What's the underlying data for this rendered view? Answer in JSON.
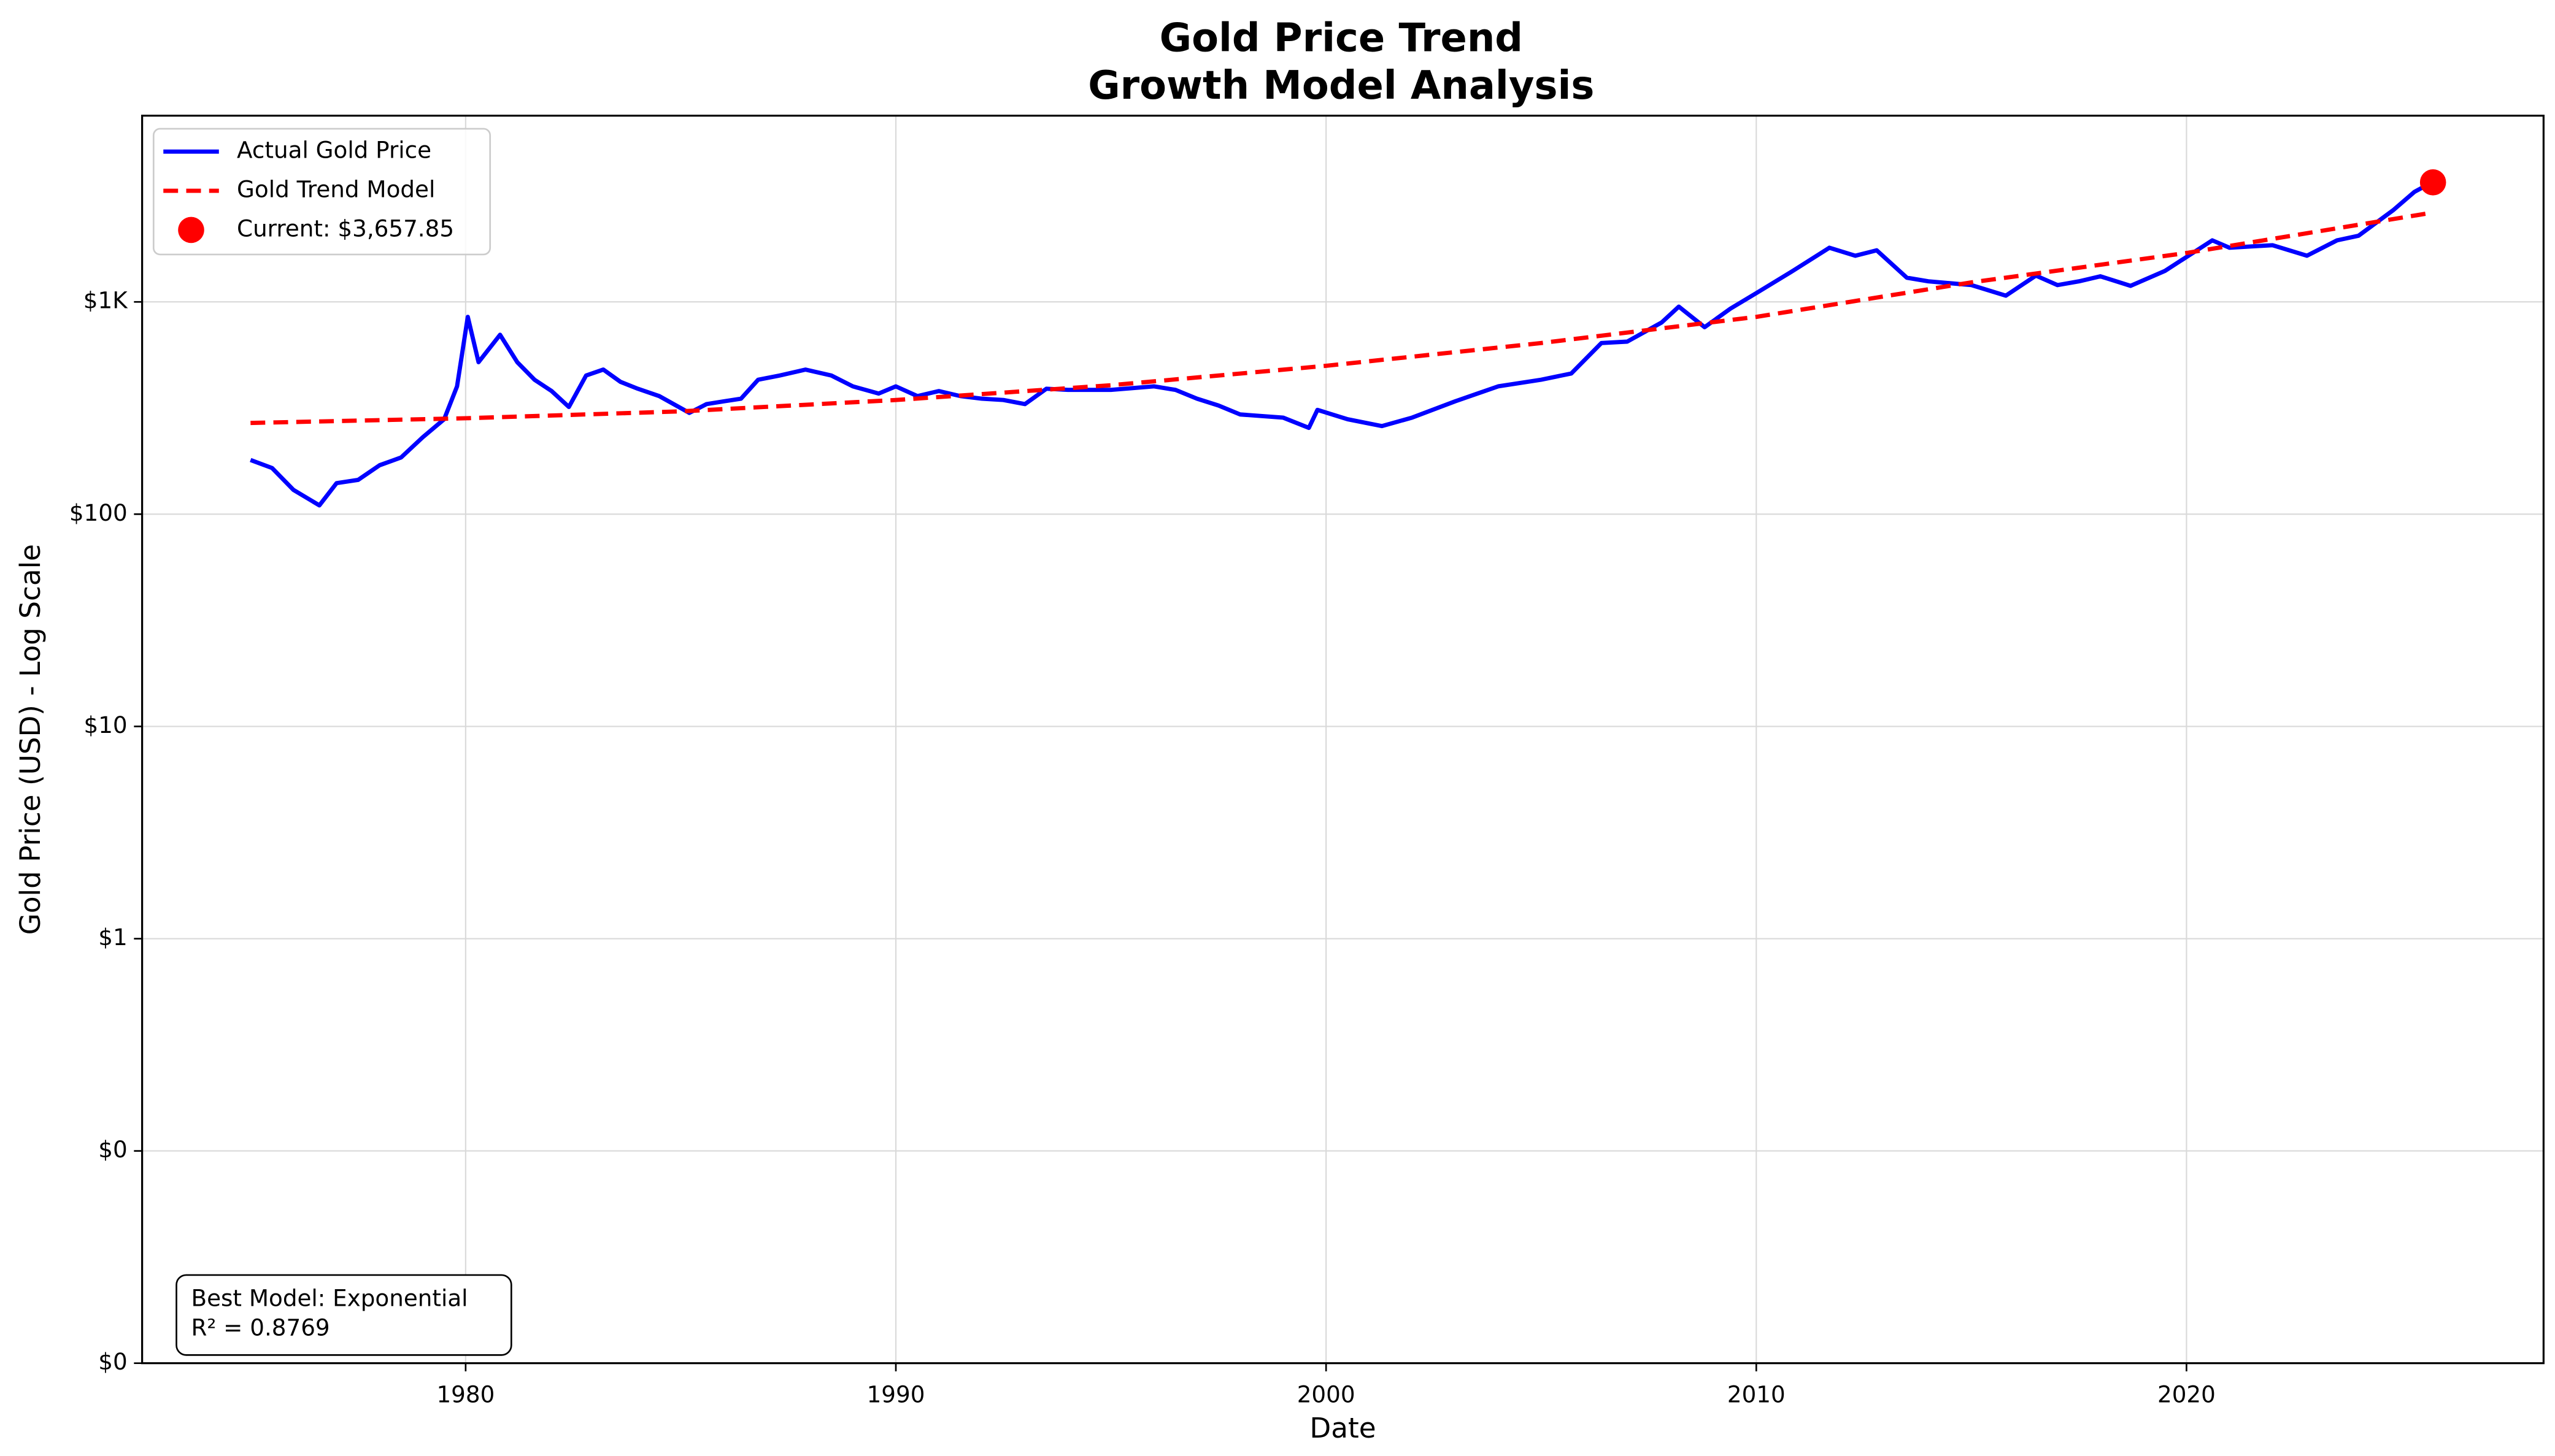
{
  "chart_data": {
    "type": "line",
    "title": "Gold Price Trend",
    "subtitle": "Growth Model Analysis",
    "x_label": "Date",
    "y_label": "Gold Price (USD) - Log Scale",
    "log_y": true,
    "grid": true,
    "legend": "upper left",
    "xlim": [
      1972.48,
      2028.3
    ],
    "xticks": [
      1980,
      1990,
      2000,
      2010,
      2020
    ],
    "ylim": [
      0.01,
      7540
    ],
    "yticks": [
      {
        "value": 0.01,
        "label": "$0"
      },
      {
        "value": 0.1,
        "label": "$0"
      },
      {
        "value": 1,
        "label": "$1"
      },
      {
        "value": 10,
        "label": "$10"
      },
      {
        "value": 100,
        "label": "$100"
      },
      {
        "value": 1000,
        "label": "$1K"
      }
    ],
    "series": [
      {
        "name": "Actual Gold Price",
        "color": "#0000ff",
        "style": "solid",
        "x": [
          1975.0,
          1975.5,
          1976.0,
          1976.6,
          1977.0,
          1977.5,
          1978.0,
          1978.5,
          1979.0,
          1979.5,
          1979.8,
          1980.05,
          1980.3,
          1980.8,
          1981.2,
          1981.6,
          1982.0,
          1982.4,
          1982.8,
          1983.2,
          1983.6,
          1984.0,
          1984.5,
          1985.2,
          1985.6,
          1986.0,
          1986.4,
          1986.8,
          1987.3,
          1987.9,
          1988.5,
          1989.0,
          1989.6,
          1990.0,
          1990.5,
          1991.0,
          1991.5,
          1992.0,
          1992.5,
          1993.0,
          1993.5,
          1994.0,
          1995.0,
          1996.0,
          1996.5,
          1997.0,
          1997.5,
          1998.0,
          1999.0,
          1999.6,
          1999.8,
          2000.5,
          2001.3,
          2002.0,
          2003.0,
          2004.0,
          2005.0,
          2005.7,
          2006.4,
          2007.0,
          2007.8,
          2008.2,
          2008.8,
          2009.4,
          2010.0,
          2010.8,
          2011.7,
          2012.3,
          2012.8,
          2013.5,
          2014.0,
          2015.0,
          2015.8,
          2016.5,
          2017.0,
          2017.5,
          2018.0,
          2018.7,
          2019.5,
          2020.6,
          2021.0,
          2022.0,
          2022.8,
          2023.5,
          2024.0,
          2024.8,
          2025.3,
          2025.7
        ],
        "values": [
          180,
          165,
          130,
          110,
          140,
          145,
          170,
          185,
          230,
          280,
          400,
          850,
          520,
          700,
          520,
          430,
          380,
          320,
          450,
          480,
          420,
          390,
          360,
          300,
          330,
          340,
          350,
          430,
          450,
          480,
          450,
          400,
          370,
          400,
          360,
          380,
          360,
          350,
          345,
          330,
          390,
          385,
          385,
          400,
          385,
          350,
          325,
          295,
          285,
          255,
          310,
          280,
          260,
          285,
          340,
          400,
          430,
          460,
          640,
          650,
          800,
          950,
          760,
          930,
          1100,
          1380,
          1800,
          1650,
          1750,
          1300,
          1250,
          1200,
          1070,
          1330,
          1200,
          1250,
          1320,
          1190,
          1400,
          1950,
          1800,
          1850,
          1650,
          1950,
          2050,
          2700,
          3300,
          3650
        ]
      },
      {
        "name": "Gold Trend Model",
        "color": "#ff0000",
        "style": "dashed",
        "x": [
          1975,
          1980,
          1985,
          1990,
          1995,
          2000,
          2005,
          2010,
          2015,
          2020,
          2025.7
        ],
        "values": [
          269,
          283,
          305,
          345,
          405,
          500,
          640,
          850,
          1236,
          1700,
          2630
        ]
      }
    ],
    "current": {
      "name": "Current: $3,657.85",
      "color": "#ff0000",
      "x": 2025.73,
      "value": 3657.85
    },
    "annotation": [
      "Best Model: Exponential",
      "R² = 0.8769"
    ]
  }
}
